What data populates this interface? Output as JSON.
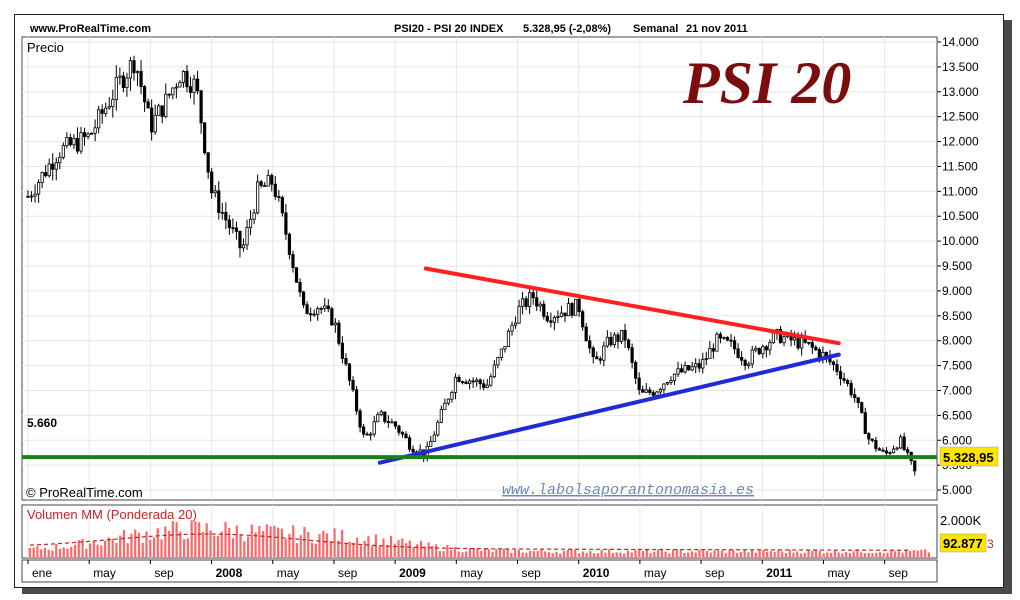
{
  "header": {
    "site": "www.ProRealTime.com",
    "instrument": "PSI20 - PSI 20 INDEX",
    "last_value": "5.328,95 (-2,08%)",
    "period": "Semanal",
    "date": "21 nov 2011"
  },
  "branding": {
    "big_title": "PSI 20",
    "watermark_url": "www.labolsaporantonomasia.es",
    "copyright": "© ProRealTime.com"
  },
  "price_panel": {
    "label": "Precio",
    "current_value_label": "5.328,95",
    "support_label": "5.660"
  },
  "volume_panel": {
    "label": "Volumen MM (Ponderada 20)",
    "tick_label": "2.000K",
    "current_value_label": "92.877",
    "current_value_suffix": "3"
  },
  "colors": {
    "title": "#7a0e0e",
    "candle": "#000000",
    "resistance": "#ff2020",
    "trend_support": "#1f2bd6",
    "horizontal_support": "#148214",
    "volume_bars": "#ff6666",
    "volume_ma": "#c62020",
    "watermark": "#6c8ab8",
    "value_box": "#ffe400"
  },
  "chart_data": [
    {
      "type": "candlestick",
      "title": "PSI20 - PSI 20 INDEX",
      "period": "Semanal",
      "ylabel": "Precio",
      "ylim": [
        4800,
        14100
      ],
      "y_ticks": [
        "14.000",
        "13.500",
        "13.000",
        "12.500",
        "12.000",
        "11.500",
        "11.000",
        "10.500",
        "10.000",
        "9.500",
        "9.000",
        "8.500",
        "8.000",
        "7.500",
        "7.000",
        "6.500",
        "6.000",
        "5.500",
        "5.000"
      ],
      "y_tick_values": [
        14000,
        13500,
        13000,
        12500,
        12000,
        11500,
        11000,
        10500,
        10000,
        9500,
        9000,
        8500,
        8000,
        7500,
        7000,
        6500,
        6000,
        5500,
        5000
      ],
      "x_ticks": [
        "ene",
        "may",
        "sep",
        "2008",
        "may",
        "sep",
        "2009",
        "may",
        "sep",
        "2010",
        "may",
        "sep",
        "2011",
        "may",
        "sep"
      ],
      "x_tick_dates": [
        "2007-01",
        "2007-05",
        "2007-09",
        "2008-01",
        "2008-05",
        "2008-09",
        "2009-01",
        "2009-05",
        "2009-09",
        "2010-01",
        "2010-05",
        "2010-09",
        "2011-01",
        "2011-05",
        "2011-09"
      ],
      "date_range": [
        "2007-01",
        "2011-11"
      ],
      "grid": true,
      "series": [
        {
          "name": "Precio",
          "key_points": [
            {
              "x": "2007-01",
              "y": 10900
            },
            {
              "x": "2007-03",
              "y": 11800
            },
            {
              "x": "2007-05",
              "y": 12100
            },
            {
              "x": "2007-07",
              "y": 13200
            },
            {
              "x": "2007-08",
              "y": 13650
            },
            {
              "x": "2007-09",
              "y": 12300
            },
            {
              "x": "2007-10",
              "y": 12800
            },
            {
              "x": "2007-11",
              "y": 13400
            },
            {
              "x": "2007-12",
              "y": 13100
            },
            {
              "x": "2008-01",
              "y": 11000
            },
            {
              "x": "2008-03",
              "y": 9800
            },
            {
              "x": "2008-04",
              "y": 11000
            },
            {
              "x": "2008-05",
              "y": 11200
            },
            {
              "x": "2008-06",
              "y": 10000
            },
            {
              "x": "2008-07",
              "y": 8600
            },
            {
              "x": "2008-08",
              "y": 8700
            },
            {
              "x": "2008-09",
              "y": 8400
            },
            {
              "x": "2008-10",
              "y": 7200
            },
            {
              "x": "2008-11",
              "y": 6000
            },
            {
              "x": "2008-12",
              "y": 6500
            },
            {
              "x": "2009-01",
              "y": 6300
            },
            {
              "x": "2009-02",
              "y": 5900
            },
            {
              "x": "2009-03",
              "y": 5700
            },
            {
              "x": "2009-04",
              "y": 6500
            },
            {
              "x": "2009-05",
              "y": 7300
            },
            {
              "x": "2009-07",
              "y": 7100
            },
            {
              "x": "2009-08",
              "y": 7800
            },
            {
              "x": "2009-09",
              "y": 8600
            },
            {
              "x": "2009-10",
              "y": 8900
            },
            {
              "x": "2009-11",
              "y": 8500
            },
            {
              "x": "2009-12",
              "y": 8600
            },
            {
              "x": "2010-01",
              "y": 8700
            },
            {
              "x": "2010-02",
              "y": 7500
            },
            {
              "x": "2010-03",
              "y": 8000
            },
            {
              "x": "2010-04",
              "y": 8100
            },
            {
              "x": "2010-05",
              "y": 6900
            },
            {
              "x": "2010-06",
              "y": 7000
            },
            {
              "x": "2010-07",
              "y": 7300
            },
            {
              "x": "2010-09",
              "y": 7500
            },
            {
              "x": "2010-10",
              "y": 8000
            },
            {
              "x": "2010-11",
              "y": 7900
            },
            {
              "x": "2010-12",
              "y": 7600
            },
            {
              "x": "2011-01",
              "y": 7900
            },
            {
              "x": "2011-02",
              "y": 8100
            },
            {
              "x": "2011-03",
              "y": 8000
            },
            {
              "x": "2011-04",
              "y": 7900
            },
            {
              "x": "2011-05",
              "y": 7700
            },
            {
              "x": "2011-06",
              "y": 7400
            },
            {
              "x": "2011-07",
              "y": 6900
            },
            {
              "x": "2011-08",
              "y": 6000
            },
            {
              "x": "2011-09",
              "y": 5700
            },
            {
              "x": "2011-10",
              "y": 6000
            },
            {
              "x": "2011-11",
              "y": 5330
            }
          ]
        }
      ],
      "annotations": [
        {
          "type": "trendline",
          "name": "resistance",
          "color": "#ff2020",
          "from": {
            "x": "2009-03",
            "y": 9450
          },
          "to": {
            "x": "2011-06",
            "y": 7950
          }
        },
        {
          "type": "trendline",
          "name": "support",
          "color": "#1f2bd6",
          "from": {
            "x": "2008-12",
            "y": 5550
          },
          "to": {
            "x": "2011-06",
            "y": 7720
          }
        },
        {
          "type": "hline",
          "name": "support_level",
          "color": "#148214",
          "y": 5660,
          "label": "5.660"
        }
      ],
      "last_value": 5328.95
    },
    {
      "type": "bar",
      "title": "Volumen MM (Ponderada 20)",
      "y_ticks": [
        "2.000K"
      ],
      "last_value_label": "92.877",
      "series": [
        {
          "name": "Volumen MM (Ponderada 20)"
        }
      ]
    }
  ]
}
